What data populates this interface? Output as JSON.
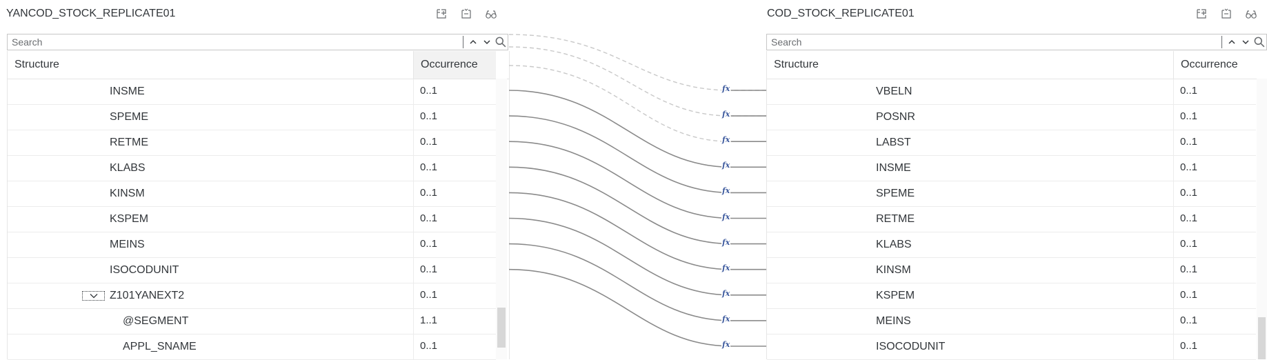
{
  "left": {
    "title": "YANCOD_STOCK_REPLICATE01",
    "search_placeholder": "Search",
    "headers": {
      "structure": "Structure",
      "occurrence": "Occurrence"
    },
    "rows": [
      {
        "name": "INSME",
        "occ": "0..1"
      },
      {
        "name": "SPEME",
        "occ": "0..1"
      },
      {
        "name": "RETME",
        "occ": "0..1"
      },
      {
        "name": "KLABS",
        "occ": "0..1"
      },
      {
        "name": "KINSM",
        "occ": "0..1"
      },
      {
        "name": "KSPEM",
        "occ": "0..1"
      },
      {
        "name": "MEINS",
        "occ": "0..1"
      },
      {
        "name": "ISOCODUNIT",
        "occ": "0..1"
      },
      {
        "name": "Z101YANEXT2",
        "occ": "0..1"
      },
      {
        "name": "@SEGMENT",
        "occ": "1..1"
      },
      {
        "name": "APPL_SNAME",
        "occ": "0..1"
      }
    ]
  },
  "right": {
    "title": "COD_STOCK_REPLICATE01",
    "search_placeholder": "Search",
    "headers": {
      "structure": "Structure",
      "occurrence": "Occurrence"
    },
    "rows": [
      {
        "name": "VBELN",
        "occ": "0..1"
      },
      {
        "name": "POSNR",
        "occ": "0..1"
      },
      {
        "name": "LABST",
        "occ": "0..1"
      },
      {
        "name": "INSME",
        "occ": "0..1"
      },
      {
        "name": "SPEME",
        "occ": "0..1"
      },
      {
        "name": "RETME",
        "occ": "0..1"
      },
      {
        "name": "KLABS",
        "occ": "0..1"
      },
      {
        "name": "KINSM",
        "occ": "0..1"
      },
      {
        "name": "KSPEM",
        "occ": "0..1"
      },
      {
        "name": "MEINS",
        "occ": "0..1"
      },
      {
        "name": "ISOCODUNIT",
        "occ": "0..1"
      }
    ]
  },
  "mapping": {
    "function_label": "fx",
    "solid_color": "#8a8a8a",
    "dashed_color": "#c8c8c8",
    "fx_color": "#3d5a9e"
  },
  "icons": [
    "add-icon",
    "collapse-icon",
    "glasses-icon",
    "search-icon",
    "chevron-up-icon",
    "chevron-down-icon"
  ]
}
